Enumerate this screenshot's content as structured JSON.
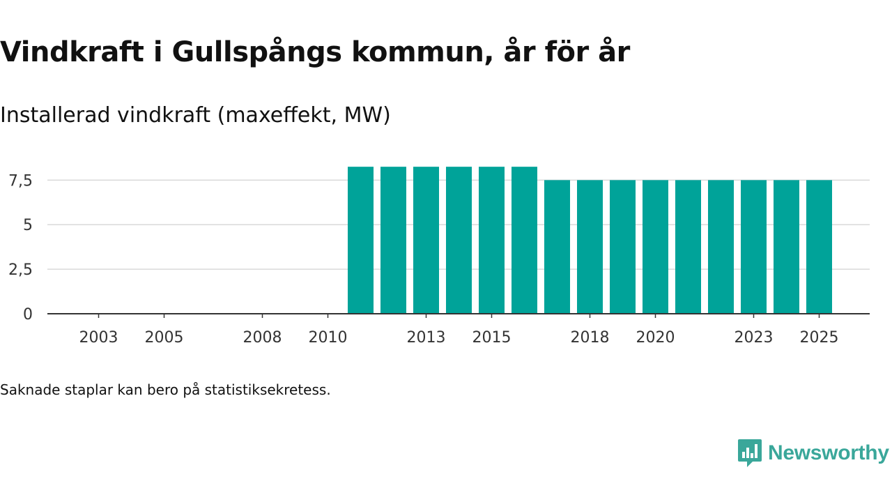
{
  "title": "Vindkraft i Gullspångs kommun, år för år",
  "subtitle": "Installerad vindkraft (maxeffekt, MW)",
  "footnote": "Saknade staplar kan bero på statistiksekretess.",
  "brand": {
    "name": "Newsworthy",
    "icon": "newsworthy-logo-icon",
    "color": "#3aa79a"
  },
  "chart_data": {
    "type": "bar",
    "title": "Installerad vindkraft (maxeffekt, MW)",
    "xlabel": "",
    "ylabel": "",
    "ylim": [
      0,
      9
    ],
    "grid": true,
    "bar_color": "#00a399",
    "categories": [
      "2002",
      "2003",
      "2004",
      "2005",
      "2006",
      "2007",
      "2008",
      "2009",
      "2010",
      "2011",
      "2012",
      "2013",
      "2014",
      "2015",
      "2016",
      "2017",
      "2018",
      "2019",
      "2020",
      "2021",
      "2022",
      "2023",
      "2024",
      "2025"
    ],
    "values": [
      0,
      0,
      0,
      0,
      0,
      0,
      0,
      0,
      0,
      8.25,
      8.25,
      8.25,
      8.25,
      8.25,
      8.25,
      7.5,
      7.5,
      7.5,
      7.5,
      7.5,
      7.5,
      7.5,
      7.5,
      7.5
    ],
    "x_tick_labels": [
      "2003",
      "2005",
      "2008",
      "2010",
      "2013",
      "2015",
      "2018",
      "2020",
      "2023",
      "2025"
    ],
    "y_ticks": [
      {
        "value": 0,
        "label": "0"
      },
      {
        "value": 2.5,
        "label": "2,5"
      },
      {
        "value": 5,
        "label": "5"
      },
      {
        "value": 7.5,
        "label": "7,5"
      }
    ]
  }
}
